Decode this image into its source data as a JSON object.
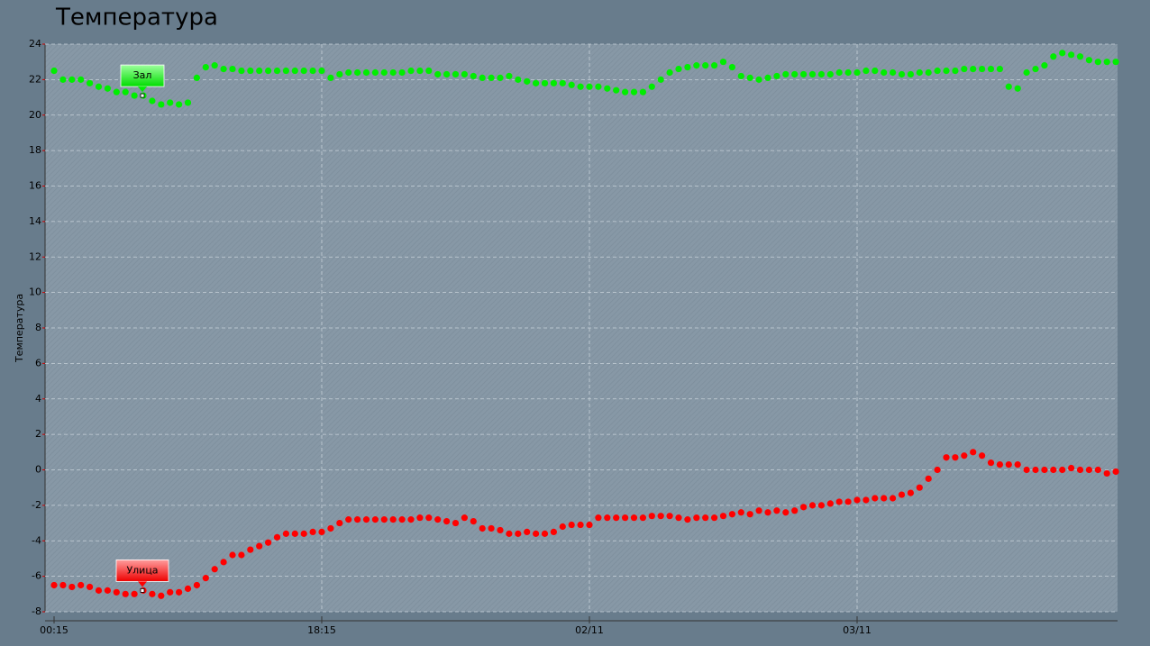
{
  "chart_data": {
    "type": "scatter",
    "title": "Температура",
    "y_label": "Температура",
    "categories": [
      "00:15",
      null,
      null,
      null,
      null,
      null,
      null,
      null,
      null,
      null,
      null,
      null,
      null,
      null,
      null,
      null,
      null,
      null,
      null,
      null,
      null,
      null,
      null,
      null,
      null,
      null,
      null,
      null,
      null,
      null,
      "18:15",
      null,
      null,
      null,
      null,
      null,
      null,
      null,
      null,
      null,
      null,
      null,
      null,
      null,
      null,
      null,
      null,
      null,
      null,
      null,
      null,
      null,
      null,
      null,
      null,
      null,
      null,
      null,
      null,
      null,
      "02/11",
      null,
      null,
      null,
      null,
      null,
      null,
      null,
      null,
      null,
      null,
      null,
      null,
      null,
      null,
      null,
      null,
      null,
      null,
      null,
      null,
      null,
      null,
      null,
      null,
      null,
      null,
      null,
      null,
      null,
      "03/11",
      null,
      null,
      null,
      null,
      null,
      null,
      null,
      null,
      null,
      null,
      null,
      null,
      null,
      null,
      null,
      null,
      null,
      null,
      null,
      null,
      null,
      null,
      null,
      null,
      null,
      null,
      null,
      null,
      null
    ],
    "series": [
      {
        "name": "Зал",
        "color": "#00ee00",
        "values": [
          22.5,
          22.0,
          22.0,
          22.0,
          21.8,
          21.6,
          21.5,
          21.3,
          21.3,
          21.1,
          21.1,
          20.8,
          20.6,
          20.7,
          20.6,
          20.7,
          22.1,
          22.7,
          22.8,
          22.6,
          22.6,
          22.5,
          22.5,
          22.5,
          22.5,
          22.5,
          22.5,
          22.5,
          22.5,
          22.5,
          22.5,
          22.1,
          22.3,
          22.4,
          22.4,
          22.4,
          22.4,
          22.4,
          22.4,
          22.4,
          22.5,
          22.5,
          22.5,
          22.3,
          22.3,
          22.3,
          22.3,
          22.2,
          22.1,
          22.1,
          22.1,
          22.2,
          22.0,
          21.9,
          21.8,
          21.8,
          21.8,
          21.8,
          21.7,
          21.6,
          21.6,
          21.6,
          21.5,
          21.4,
          21.3,
          21.3,
          21.3,
          21.6,
          22.0,
          22.4,
          22.6,
          22.7,
          22.8,
          22.8,
          22.8,
          23.0,
          22.7,
          22.2,
          22.1,
          22.0,
          22.1,
          22.2,
          22.3,
          22.3,
          22.3,
          22.3,
          22.3,
          22.3,
          22.4,
          22.4,
          22.4,
          22.5,
          22.5,
          22.4,
          22.4,
          22.3,
          22.3,
          22.4,
          22.4,
          22.5,
          22.5,
          22.5,
          22.6,
          22.6,
          22.6,
          22.6,
          22.6,
          21.6,
          21.5,
          22.4,
          22.6,
          22.8,
          23.3,
          23.5,
          23.4,
          23.3,
          23.1,
          23.0,
          23.0,
          23.0
        ]
      },
      {
        "name": "Улица",
        "color": "#ff0000",
        "values": [
          -6.5,
          -6.5,
          -6.6,
          -6.5,
          -6.6,
          -6.8,
          -6.8,
          -6.9,
          -7.0,
          -7.0,
          -6.8,
          -7.0,
          -7.1,
          -6.9,
          -6.9,
          -6.7,
          -6.5,
          -6.1,
          -5.6,
          -5.2,
          -4.8,
          -4.8,
          -4.5,
          -4.3,
          -4.1,
          -3.8,
          -3.6,
          -3.6,
          -3.6,
          -3.5,
          -3.5,
          -3.3,
          -3.0,
          -2.8,
          -2.8,
          -2.8,
          -2.8,
          -2.8,
          -2.8,
          -2.8,
          -2.8,
          -2.7,
          -2.7,
          -2.8,
          -2.9,
          -3.0,
          -2.7,
          -2.9,
          -3.3,
          -3.3,
          -3.4,
          -3.6,
          -3.6,
          -3.5,
          -3.6,
          -3.6,
          -3.5,
          -3.2,
          -3.1,
          -3.1,
          -3.1,
          -2.7,
          -2.7,
          -2.7,
          -2.7,
          -2.7,
          -2.7,
          -2.6,
          -2.6,
          -2.6,
          -2.7,
          -2.8,
          -2.7,
          -2.7,
          -2.7,
          -2.6,
          -2.5,
          -2.4,
          -2.5,
          -2.3,
          -2.4,
          -2.3,
          -2.4,
          -2.3,
          -2.1,
          -2.0,
          -2.0,
          -1.9,
          -1.8,
          -1.8,
          -1.7,
          -1.7,
          -1.6,
          -1.6,
          -1.6,
          -1.4,
          -1.3,
          -1.0,
          -0.5,
          0.0,
          0.7,
          0.7,
          0.8,
          1.0,
          0.8,
          0.4,
          0.3,
          0.3,
          0.3,
          0.0,
          0.0,
          0.0,
          0.0,
          0.0,
          0.1,
          0.0,
          0.0,
          0.0,
          -0.2,
          -0.1
        ]
      }
    ],
    "ylim": [
      -8,
      24
    ],
    "yticks": [
      -8,
      -6,
      -4,
      -2,
      0,
      2,
      4,
      6,
      8,
      10,
      12,
      14,
      16,
      18,
      20,
      22,
      24
    ],
    "grid": true
  }
}
